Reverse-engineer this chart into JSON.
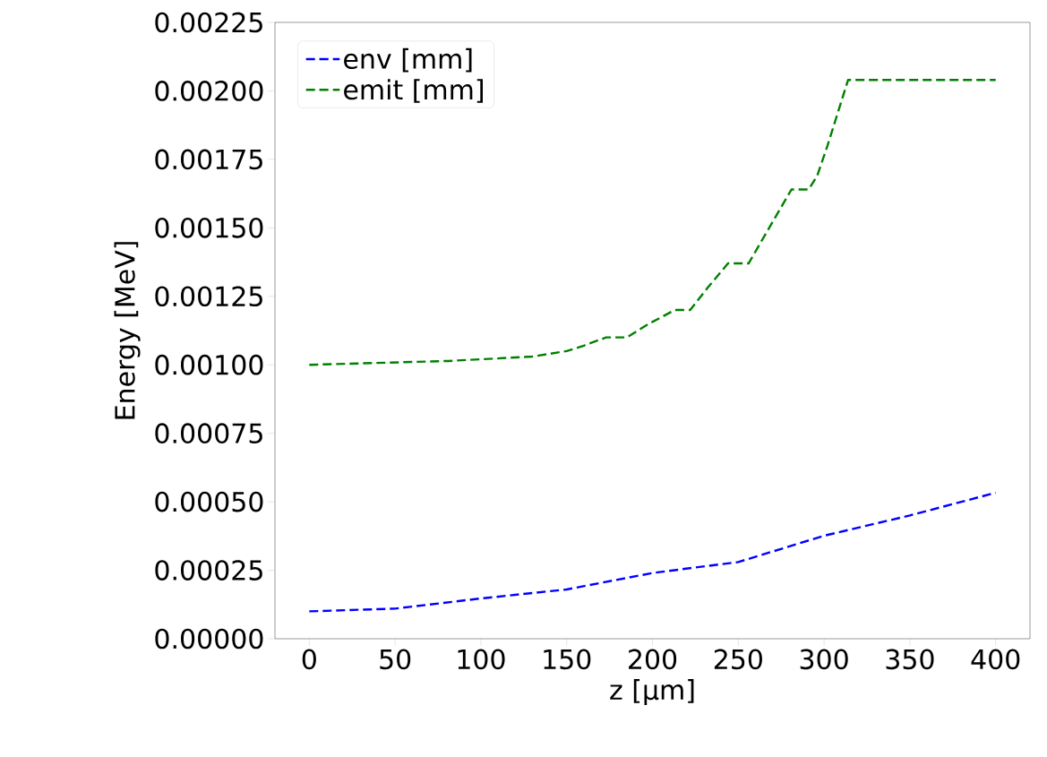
{
  "chart_data": {
    "type": "line",
    "xlabel": "z [μm]",
    "ylabel": "Energy [MeV]",
    "xlim": [
      -20,
      420
    ],
    "ylim": [
      0,
      0.00225
    ],
    "xticks": [
      0,
      50,
      100,
      150,
      200,
      250,
      300,
      350,
      400
    ],
    "yticks": [
      {
        "value": 0,
        "label": "0.00000"
      },
      {
        "value": 0.00025,
        "label": "0.00025"
      },
      {
        "value": 0.0005,
        "label": "0.00050"
      },
      {
        "value": 0.00075,
        "label": "0.00075"
      },
      {
        "value": 0.001,
        "label": "0.00100"
      },
      {
        "value": 0.00125,
        "label": "0.00125"
      },
      {
        "value": 0.0015,
        "label": "0.00150"
      },
      {
        "value": 0.00175,
        "label": "0.00175"
      },
      {
        "value": 0.002,
        "label": "0.00200"
      },
      {
        "value": 0.00225,
        "label": "0.00225"
      }
    ],
    "legend": "top left",
    "grid": false,
    "line_style": "dashed",
    "marker": "none",
    "series": [
      {
        "name": "env [mm]",
        "color": "#0000ff",
        "x": [
          0,
          50,
          100,
          150,
          200,
          250,
          300,
          350,
          400
        ],
        "values": [
          0.0001,
          0.00011,
          0.000147,
          0.00018,
          0.00024,
          0.00028,
          0.000376,
          0.00045,
          0.000533
        ]
      },
      {
        "name": "emit [mm]",
        "color": "#008000",
        "x": [
          0,
          81,
          130,
          150,
          160,
          173,
          185,
          198,
          213,
          222,
          232,
          244,
          256,
          268,
          281,
          291,
          296,
          302,
          307,
          314,
          400
        ],
        "values": [
          0.001,
          0.001014,
          0.00103,
          0.00105,
          0.00107,
          0.0011,
          0.0011,
          0.00115,
          0.0012,
          0.0012,
          0.00128,
          0.00137,
          0.00137,
          0.0015,
          0.00164,
          0.00164,
          0.00169,
          0.0018,
          0.0019,
          0.00204,
          0.00204
        ]
      }
    ]
  }
}
